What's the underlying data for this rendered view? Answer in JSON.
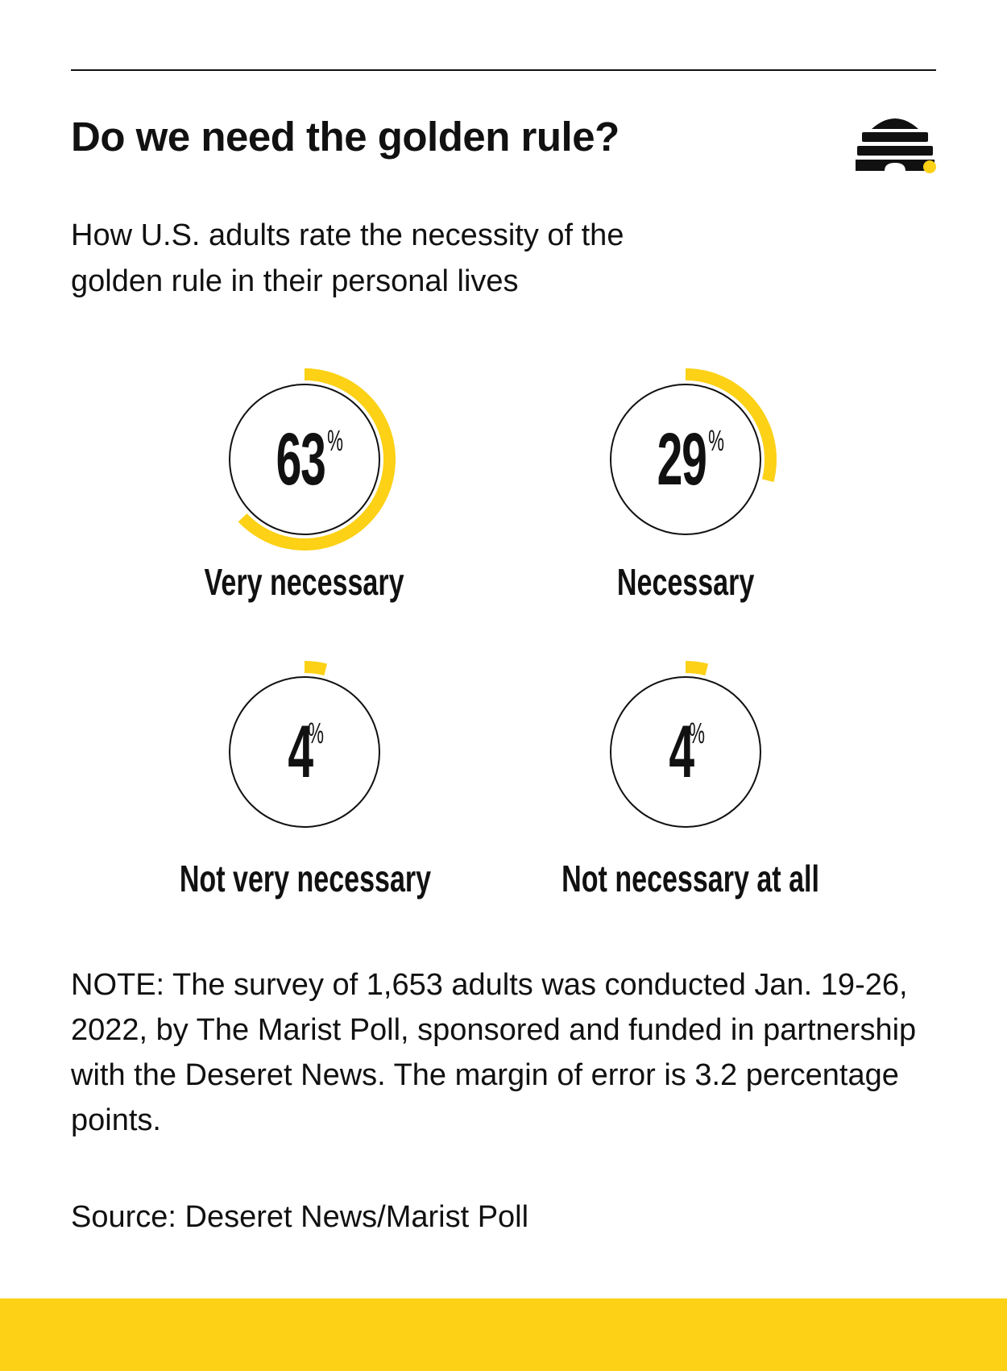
{
  "header": {
    "title": "Do we need the golden rule?",
    "subtitle": "How U.S. adults rate the necessity of the golden rule in their personal lives"
  },
  "logo": {
    "icon": "beehive-icon"
  },
  "colors": {
    "accent": "#FCD116",
    "ink": "#111111",
    "background": "#FFFFFF"
  },
  "chart_data": {
    "type": "donut",
    "title": "Do we need the golden rule?",
    "subtitle": "How U.S. adults rate the necessity of the golden rule in their personal lives",
    "unit": "%",
    "categories": [
      "Very necessary",
      "Necessary",
      "Not very necessary",
      "Not necessary at all"
    ],
    "values": [
      63,
      29,
      4,
      4
    ],
    "items": [
      {
        "label": "Very necessary",
        "value": 63,
        "display": "63",
        "unit": "%"
      },
      {
        "label": "Necessary",
        "value": 29,
        "display": "29",
        "unit": "%"
      },
      {
        "label": "Not very necessary",
        "value": 4,
        "display": "4",
        "unit": "%"
      },
      {
        "label": "Not necessary at all",
        "value": 4,
        "display": "4",
        "unit": "%"
      }
    ]
  },
  "footer": {
    "note": "NOTE: The survey of 1,653 adults was conducted Jan. 19-26, 2022, by The Marist Poll, sponsored and funded in partnership with the Deseret News. The margin of error is 3.2 percentage points.",
    "source": "Source: Deseret News/Marist Poll"
  }
}
